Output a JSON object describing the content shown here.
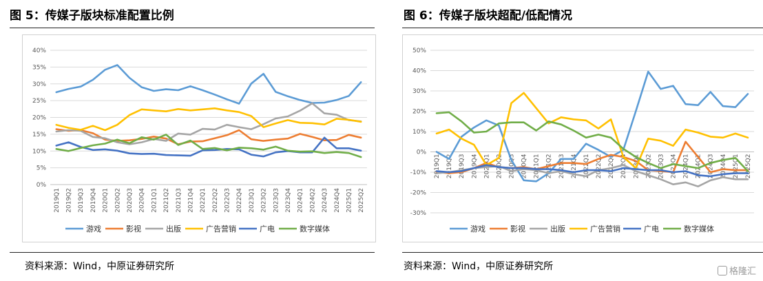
{
  "figure5": {
    "title": "图 5：传媒子版块标准配置比例",
    "source": "资料来源：Wind，中原证券研究所"
  },
  "figure6": {
    "title": "图 6：传媒子版块超配/低配情况",
    "source": "资料来源：Wind，中原证券研究所"
  },
  "watermark": {
    "text": "格隆汇"
  },
  "chart_data": [
    {
      "id": "fig5",
      "type": "line",
      "title": "",
      "xlabel": "",
      "ylabel": "",
      "categories": [
        "2019Q1",
        "2019Q2",
        "2019Q3",
        "2019Q4",
        "2020Q1",
        "2020Q2",
        "2020Q3",
        "2020Q4",
        "2021Q1",
        "2021Q2",
        "2021Q3",
        "2021Q4",
        "2022Q1",
        "2022Q2",
        "2022Q3",
        "2022Q4",
        "2023Q1",
        "2023Q2",
        "2023Q3",
        "2023Q4",
        "2024Q1",
        "2024Q2",
        "2024Q3",
        "2024Q4",
        "2025Q1",
        "2025Q2"
      ],
      "ylim": [
        0,
        40
      ],
      "yticks": [
        0,
        5,
        10,
        15,
        20,
        25,
        30,
        35,
        40
      ],
      "ytick_suffix": "%",
      "grid": true,
      "legend": "bottom",
      "series": [
        {
          "name": "游戏",
          "color": "#5B9BD5",
          "values": [
            27.5,
            28.5,
            29.2,
            31.2,
            34.2,
            35.6,
            31.8,
            29.0,
            27.9,
            28.4,
            28.1,
            29.3,
            28.1,
            26.8,
            25.4,
            24.1,
            30.1,
            33.0,
            27.6,
            26.3,
            25.2,
            24.3,
            24.4,
            25.2,
            26.4,
            30.5
          ]
        },
        {
          "name": "影视",
          "color": "#ED7D31",
          "values": [
            16.5,
            16.0,
            16.2,
            15.3,
            13.4,
            13.0,
            13.2,
            13.6,
            14.3,
            13.7,
            12.0,
            12.8,
            12.9,
            13.8,
            14.7,
            16.2,
            13.5,
            13.0,
            13.4,
            13.7,
            15.1,
            14.2,
            13.2,
            13.3,
            14.8,
            14.0
          ]
        },
        {
          "name": "出版",
          "color": "#A5A5A5",
          "values": [
            15.8,
            16.2,
            16.0,
            14.2,
            13.8,
            12.6,
            12.0,
            12.6,
            13.6,
            13.0,
            15.2,
            14.9,
            16.6,
            16.4,
            17.8,
            17.1,
            16.5,
            18.0,
            19.7,
            20.3,
            22.0,
            24.2,
            21.2,
            20.8,
            19.2,
            18.8
          ]
        },
        {
          "name": "广告营销",
          "color": "#FFC000",
          "values": [
            17.8,
            16.9,
            16.3,
            17.5,
            16.2,
            17.8,
            20.7,
            22.4,
            22.1,
            21.8,
            22.5,
            22.1,
            22.4,
            22.7,
            22.1,
            21.6,
            20.4,
            17.1,
            18.2,
            19.2,
            18.4,
            18.3,
            17.9,
            19.6,
            19.3,
            18.7
          ]
        },
        {
          "name": "广电",
          "color": "#4472C4",
          "values": [
            11.6,
            12.6,
            11.2,
            10.3,
            10.5,
            10.1,
            9.3,
            9.1,
            9.2,
            8.8,
            8.7,
            8.6,
            10.2,
            10.3,
            10.6,
            10.5,
            8.9,
            8.4,
            9.6,
            10.0,
            9.6,
            9.6,
            14.0,
            10.8,
            10.8,
            10.1
          ]
        },
        {
          "name": "数字媒体",
          "color": "#70AD47",
          "values": [
            10.6,
            10.0,
            10.9,
            11.7,
            12.2,
            13.4,
            12.3,
            14.1,
            13.4,
            14.9,
            11.8,
            13.1,
            10.6,
            10.9,
            10.2,
            11.0,
            10.8,
            10.4,
            11.3,
            10.1,
            9.8,
            9.9,
            9.4,
            9.7,
            9.4,
            8.2
          ]
        }
      ]
    },
    {
      "id": "fig6",
      "type": "line",
      "title": "",
      "xlabel": "",
      "ylabel": "",
      "categories": [
        "2019Q1",
        "2019Q2",
        "2019Q3",
        "2019Q4",
        "2020Q1",
        "2020Q2",
        "2020Q3",
        "2020Q4",
        "2021Q1",
        "2021Q2",
        "2021Q3",
        "2021Q4",
        "2022Q1",
        "2022Q2",
        "2022Q3",
        "2022Q4",
        "2023Q1",
        "2023Q2",
        "2023Q3",
        "2023Q4",
        "2024Q1",
        "2024Q2",
        "2024Q3",
        "2024Q4",
        "2025Q1",
        "2025Q2"
      ],
      "ylim": [
        -30,
        50
      ],
      "yticks": [
        -30,
        -20,
        -10,
        0,
        10,
        20,
        30,
        40,
        50
      ],
      "ytick_suffix": "%",
      "grid": true,
      "legend": "bottom",
      "series": [
        {
          "name": "游戏",
          "color": "#5B9BD5",
          "values": [
            0.0,
            -3.5,
            7.5,
            12.0,
            15.5,
            13.0,
            -4.0,
            -14.0,
            -14.5,
            -10.5,
            -3.5,
            -3.5,
            4.0,
            1.0,
            -2.5,
            1.0,
            20.0,
            39.5,
            31.0,
            32.5,
            23.5,
            23.0,
            29.5,
            22.5,
            22.0,
            28.5
          ]
        },
        {
          "name": "影视",
          "color": "#ED7D31",
          "values": [
            -10.0,
            -10.5,
            -10.0,
            -8.0,
            -5.5,
            -7.5,
            -8.0,
            -7.5,
            -8.5,
            -7.0,
            -5.5,
            -5.5,
            -6.0,
            -3.5,
            -1.5,
            -2.5,
            -4.5,
            -9.0,
            -9.5,
            -10.0,
            5.0,
            -2.5,
            -10.0,
            -8.5,
            -9.0,
            -9.0
          ]
        },
        {
          "name": "出版",
          "color": "#A5A5A5",
          "values": [
            -10.5,
            -10.0,
            -9.0,
            -8.0,
            -7.5,
            -7.0,
            -9.5,
            -8.5,
            -9.0,
            -10.5,
            -9.5,
            -11.0,
            -12.0,
            -9.0,
            -8.0,
            -6.5,
            -9.5,
            -11.5,
            -13.5,
            -16.0,
            -15.0,
            -17.0,
            -14.0,
            -12.5,
            -13.5,
            -13.5
          ]
        },
        {
          "name": "广告营销",
          "color": "#FFC000",
          "values": [
            9.0,
            11.0,
            6.5,
            3.5,
            -6.5,
            -3.0,
            24.0,
            29.0,
            21.5,
            14.0,
            17.0,
            16.0,
            15.5,
            11.5,
            16.0,
            -2.5,
            -8.0,
            6.5,
            5.5,
            3.0,
            11.0,
            9.5,
            7.5,
            7.0,
            9.0,
            7.0
          ]
        },
        {
          "name": "广电",
          "color": "#4472C4",
          "values": [
            -9.5,
            -10.0,
            -9.5,
            -8.0,
            -6.5,
            -7.5,
            -8.0,
            -8.0,
            -8.5,
            -8.5,
            -9.0,
            -10.0,
            -9.0,
            -9.0,
            -9.5,
            -8.0,
            -8.5,
            -9.0,
            -9.0,
            -10.0,
            -9.5,
            -11.5,
            -12.0,
            -11.0,
            -10.5,
            -10.5
          ]
        },
        {
          "name": "数字媒体",
          "color": "#70AD47",
          "values": [
            19.0,
            19.5,
            15.0,
            9.5,
            10.0,
            14.0,
            14.5,
            14.5,
            10.5,
            15.0,
            13.5,
            10.5,
            7.0,
            8.5,
            7.0,
            1.5,
            -2.5,
            -5.5,
            -8.0,
            -6.0,
            -7.0,
            -8.0,
            -5.5,
            -4.0,
            -3.0,
            -9.5
          ]
        }
      ]
    }
  ]
}
